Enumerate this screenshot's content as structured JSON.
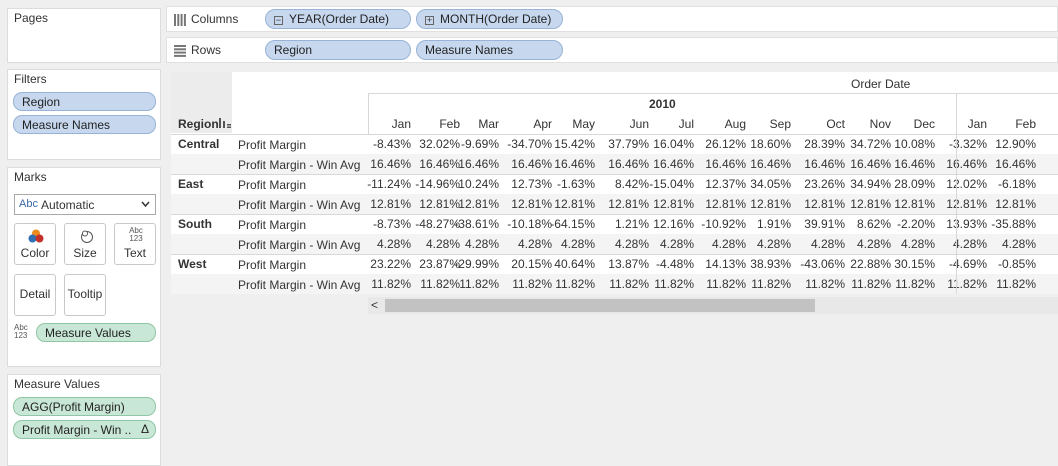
{
  "pages": {
    "title": "Pages"
  },
  "filters": {
    "title": "Filters",
    "items": [
      "Region",
      "Measure Names"
    ]
  },
  "marks": {
    "title": "Marks",
    "type_icon": "Abc",
    "type_value": "Automatic",
    "buttons": {
      "color": "Color",
      "size": "Size",
      "text": "Text",
      "detail": "Detail",
      "tooltip": "Tooltip"
    },
    "text_icon": "Abc 123",
    "field_icon": "Abc 123",
    "field": "Measure Values"
  },
  "measure_values": {
    "title": "Measure Values",
    "items": [
      "AGG(Profit Margin)",
      "Profit Margin - Win .."
    ],
    "delta": "Δ"
  },
  "shelves": {
    "columns": {
      "label": "Columns",
      "pills": [
        "YEAR(Order Date)",
        "MONTH(Order Date)"
      ]
    },
    "rows": {
      "label": "Rows",
      "pills": [
        "Region",
        "Measure Names"
      ]
    }
  },
  "table": {
    "title": "Order Date",
    "year": "2010",
    "region_header": "Region",
    "months": [
      "Jan",
      "Feb",
      "Mar",
      "Apr",
      "May",
      "Jun",
      "Jul",
      "Aug",
      "Sep",
      "Oct",
      "Nov",
      "Dec",
      "Jan",
      "Feb"
    ],
    "rows": [
      {
        "region": "Central",
        "measure": "Profit Margin",
        "values": [
          "-8.43%",
          "32.02%",
          "-9.69%",
          "-34.70%",
          "15.42%",
          "37.79%",
          "16.04%",
          "26.12%",
          "18.60%",
          "28.39%",
          "34.72%",
          "10.08%",
          "-3.32%",
          "12.90%"
        ]
      },
      {
        "region": "",
        "measure": "Profit Margin - Win Avg",
        "values": [
          "16.46%",
          "16.46%",
          "16.46%",
          "16.46%",
          "16.46%",
          "16.46%",
          "16.46%",
          "16.46%",
          "16.46%",
          "16.46%",
          "16.46%",
          "16.46%",
          "16.46%",
          "16.46%"
        ]
      },
      {
        "region": "East",
        "measure": "Profit Margin",
        "values": [
          "-11.24%",
          "-14.96%",
          "10.24%",
          "12.73%",
          "-1.63%",
          "8.42%",
          "-15.04%",
          "12.37%",
          "34.05%",
          "23.26%",
          "34.94%",
          "28.09%",
          "12.02%",
          "-6.18%"
        ]
      },
      {
        "region": "",
        "measure": "Profit Margin - Win Avg",
        "values": [
          "12.81%",
          "12.81%",
          "12.81%",
          "12.81%",
          "12.81%",
          "12.81%",
          "12.81%",
          "12.81%",
          "12.81%",
          "12.81%",
          "12.81%",
          "12.81%",
          "12.81%",
          "12.81%"
        ]
      },
      {
        "region": "South",
        "measure": "Profit Margin",
        "values": [
          "-8.73%",
          "-48.27%",
          "-38.61%",
          "-10.18%",
          "-64.15%",
          "1.21%",
          "12.16%",
          "-10.92%",
          "1.91%",
          "39.91%",
          "8.62%",
          "-2.20%",
          "13.93%",
          "-35.88%"
        ]
      },
      {
        "region": "",
        "measure": "Profit Margin - Win Avg",
        "values": [
          "4.28%",
          "4.28%",
          "4.28%",
          "4.28%",
          "4.28%",
          "4.28%",
          "4.28%",
          "4.28%",
          "4.28%",
          "4.28%",
          "4.28%",
          "4.28%",
          "4.28%",
          "4.28%"
        ]
      },
      {
        "region": "West",
        "measure": "Profit Margin",
        "values": [
          "23.22%",
          "23.87%",
          "-29.99%",
          "20.15%",
          "40.64%",
          "13.87%",
          "-4.48%",
          "14.13%",
          "38.93%",
          "-43.06%",
          "22.88%",
          "30.15%",
          "-4.69%",
          "-0.85%"
        ]
      },
      {
        "region": "",
        "measure": "Profit Margin - Win Avg",
        "values": [
          "11.82%",
          "11.82%",
          "11.82%",
          "11.82%",
          "11.82%",
          "11.82%",
          "11.82%",
          "11.82%",
          "11.82%",
          "11.82%",
          "11.82%",
          "11.82%",
          "11.82%",
          "11.82%"
        ]
      }
    ]
  },
  "scrollbar": {
    "left_arrow": "<"
  }
}
